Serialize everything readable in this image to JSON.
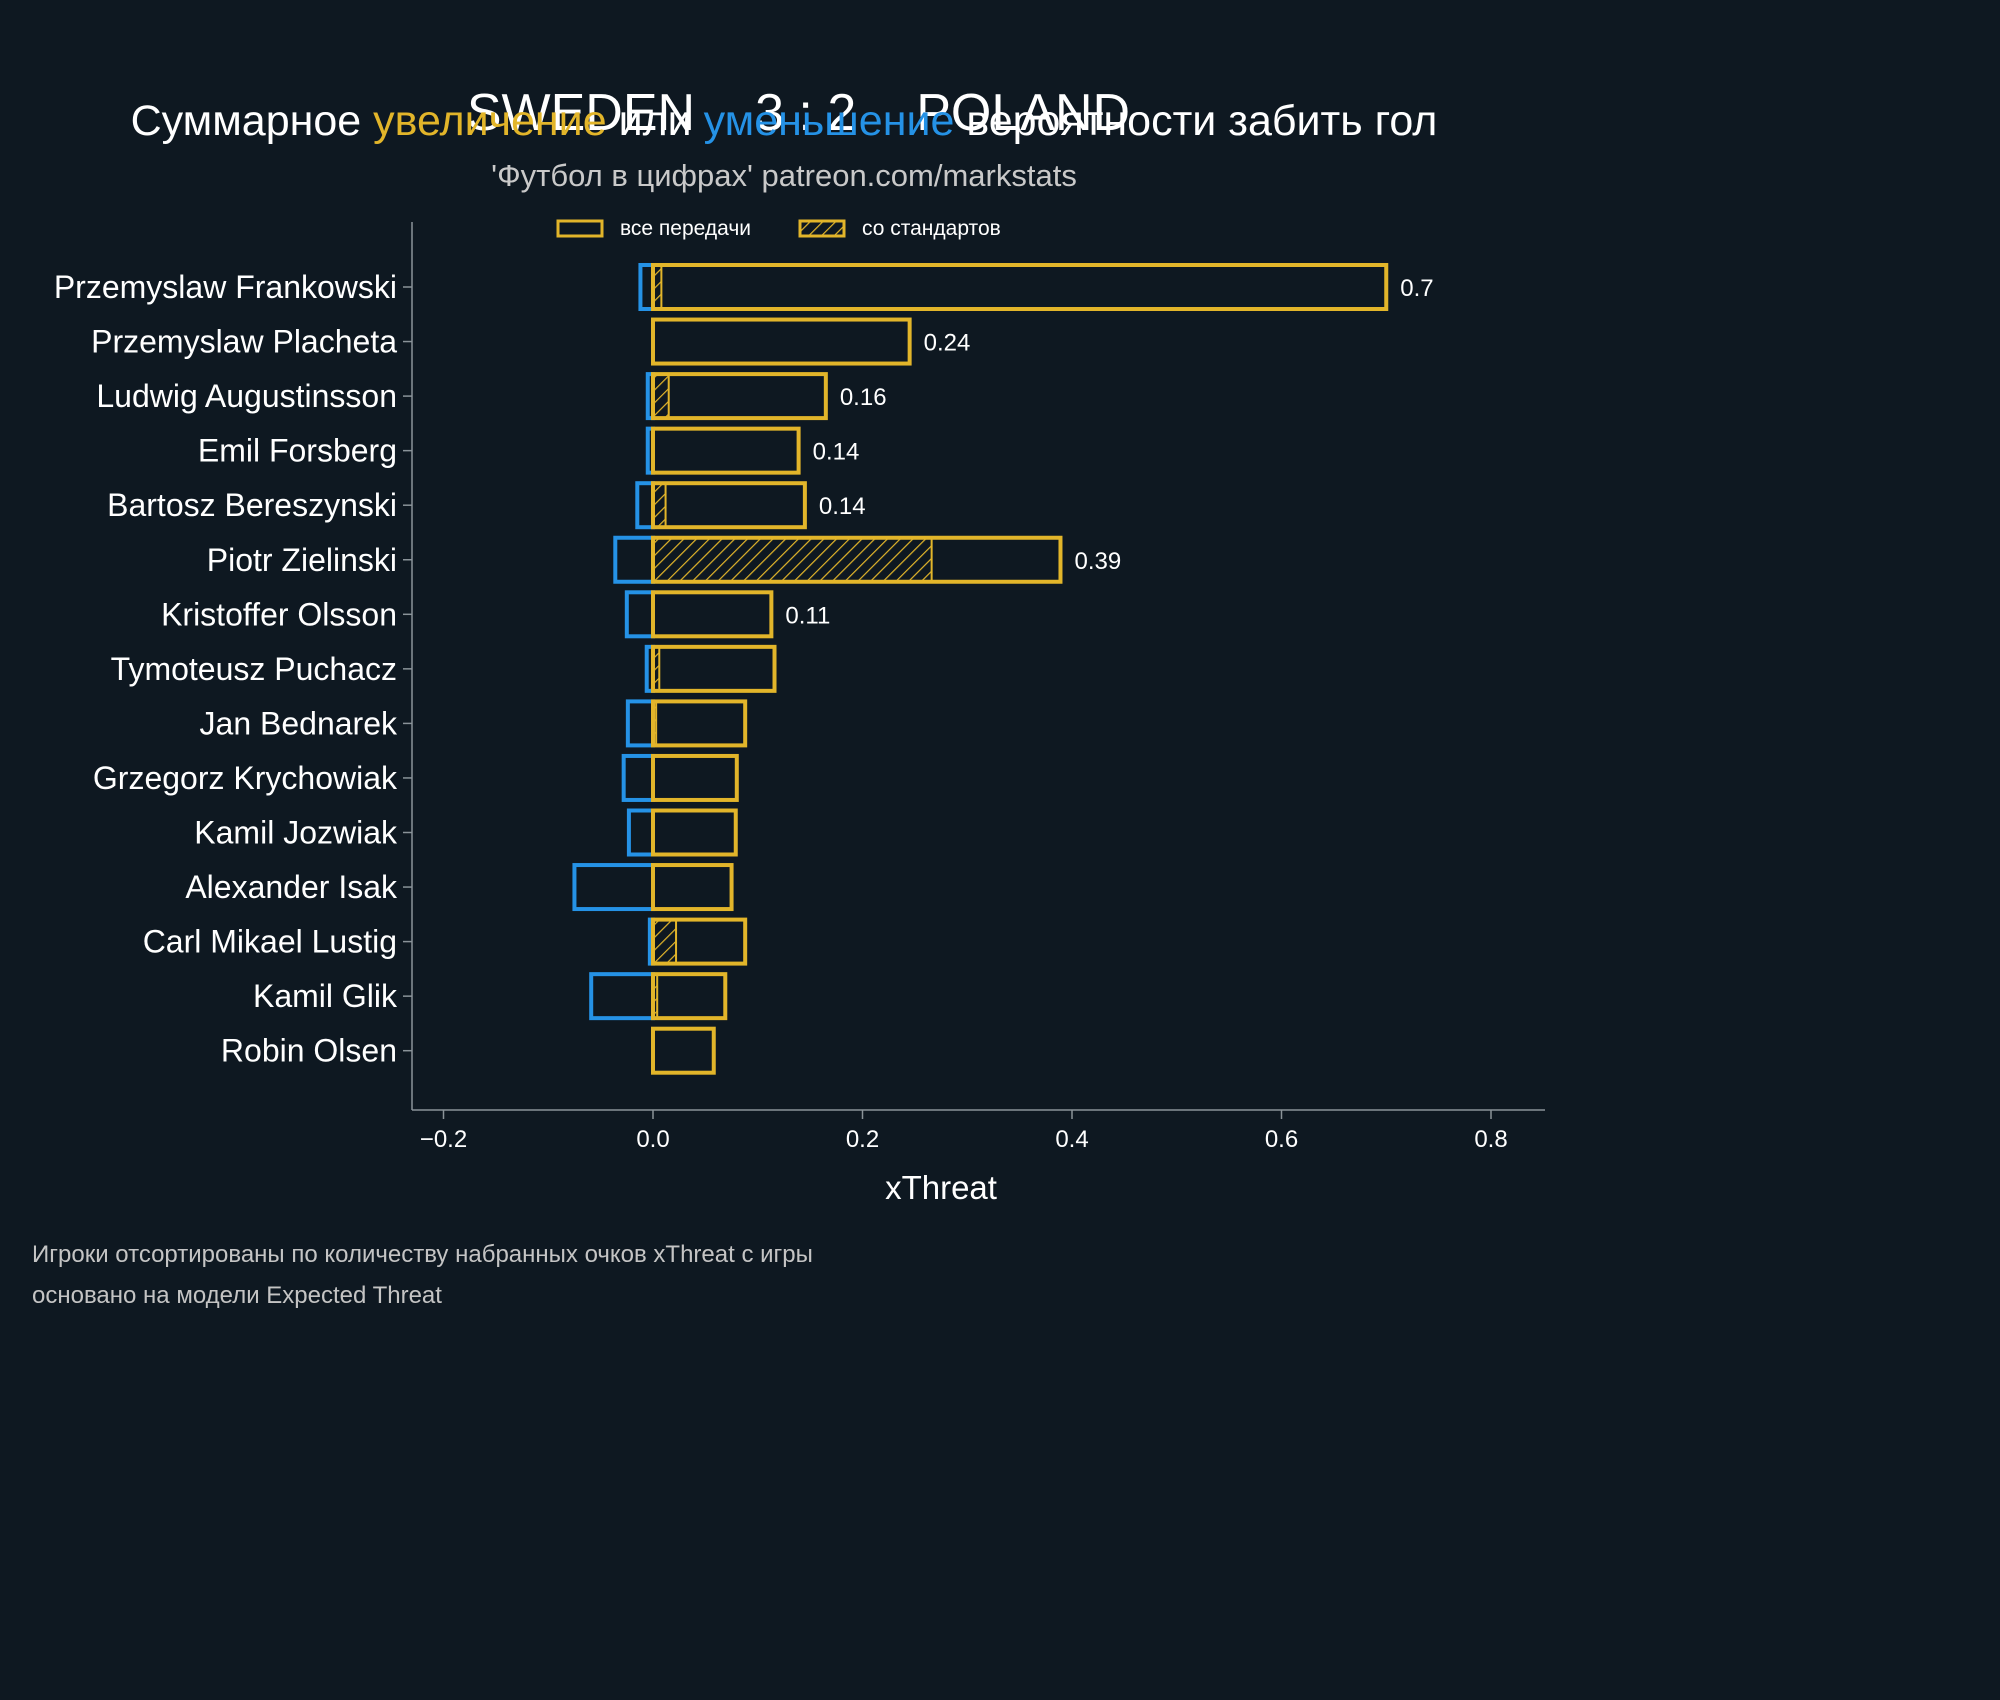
{
  "header": {
    "team_home": "SWEDEN",
    "score": "3 : 2",
    "team_away": "POLAND",
    "subtitle_part1": "Суммарное ",
    "subtitle_highlight_increase": "увеличение",
    "subtitle_part2": " или ",
    "subtitle_highlight_decrease": "уменьшение",
    "subtitle_part3": " вероятности забить гол",
    "credit": "'Футбол в цифрах' patreon.com/markstats"
  },
  "footer": {
    "line1": "Игроки отсортированы по количеству набранных очков xThreat с игры",
    "line2": "основано на модели Expected Threat"
  },
  "colors": {
    "background": "#0e1821",
    "increase": "#e2b52a",
    "decrease": "#2592e6",
    "axis": "#8a9399",
    "text": "#ffffff"
  },
  "chart_data": {
    "type": "bar",
    "orientation": "horizontal",
    "xlabel": "xThreat",
    "xlim": [
      -0.23,
      0.85
    ],
    "xticks": [
      -0.2,
      0.0,
      0.2,
      0.4,
      0.6,
      0.8
    ],
    "xtick_labels": [
      "−0.2",
      "0.0",
      "0.2",
      "0.4",
      "0.6",
      "0.8"
    ],
    "legend": {
      "position": "top-center",
      "items": [
        {
          "label": "все передачи",
          "style": "outline"
        },
        {
          "label": "со стандартов",
          "style": "hatched"
        }
      ]
    },
    "categories": [
      "Przemyslaw Frankowski",
      "Przemyslaw Placheta",
      "Ludwig Augustinsson",
      "Emil Forsberg",
      "Bartosz Bereszynski",
      "Piotr Zielinski",
      "Kristoffer Olsson",
      "Tymoteusz Puchacz",
      "Jan Bednarek",
      "Grzegorz Krychowiak",
      "Kamil Jozwiak",
      "Alexander Isak",
      "Carl Mikael Lustig",
      "Kamil Glik",
      "Robin Olsen"
    ],
    "series": [
      {
        "name": "positive_all",
        "values": [
          0.7,
          0.245,
          0.165,
          0.139,
          0.145,
          0.389,
          0.113,
          0.116,
          0.088,
          0.08,
          0.079,
          0.075,
          0.088,
          0.069,
          0.058
        ]
      },
      {
        "name": "positive_set_pieces",
        "values": [
          0.008,
          0,
          0.015,
          0,
          0.012,
          0.266,
          0,
          0.006,
          0.003,
          0,
          0,
          0,
          0.022,
          0.004,
          0
        ]
      },
      {
        "name": "negative_all",
        "values": [
          -0.012,
          0,
          -0.005,
          -0.005,
          -0.015,
          -0.036,
          -0.025,
          -0.006,
          -0.024,
          -0.028,
          -0.023,
          -0.075,
          -0.003,
          -0.059,
          0
        ]
      }
    ],
    "value_labels": [
      "0.7",
      "0.24",
      "0.16",
      "0.14",
      "0.14",
      "0.39",
      "0.11",
      "",
      "",
      "",
      "",
      "",
      "",
      "",
      ""
    ]
  }
}
